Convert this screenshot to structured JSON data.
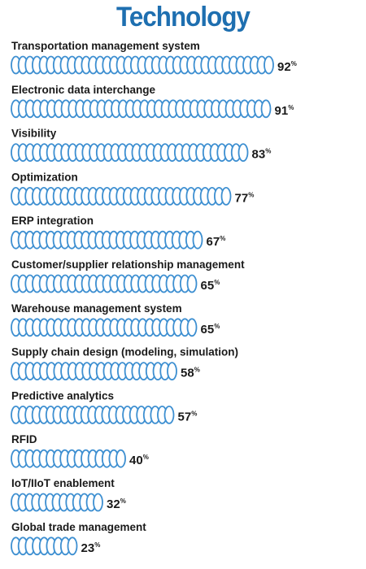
{
  "title": "Technology",
  "colors": {
    "title": "#1e6fb0",
    "coil_stroke": "#3d8fd1",
    "coil_fill": "#ffffff",
    "label": "#1a1a1a",
    "value": "#1a1a1a"
  },
  "chart_data": {
    "type": "bar",
    "orientation": "horizontal",
    "title": "Technology",
    "categories": [
      "Transportation management system",
      "Electronic data interchange",
      "Visibility",
      "Optimization",
      "ERP integration",
      "Customer/supplier relationship management",
      "Warehouse management system",
      "Supply chain design (modeling, simulation)",
      "Predictive analytics",
      "RFID",
      "IoT/IIoT enablement",
      "Global trade management"
    ],
    "values": [
      92,
      91,
      83,
      77,
      67,
      65,
      65,
      58,
      57,
      40,
      32,
      23
    ],
    "value_suffix": "%",
    "xlim": [
      0,
      100
    ],
    "grid": false,
    "legend": "none"
  }
}
